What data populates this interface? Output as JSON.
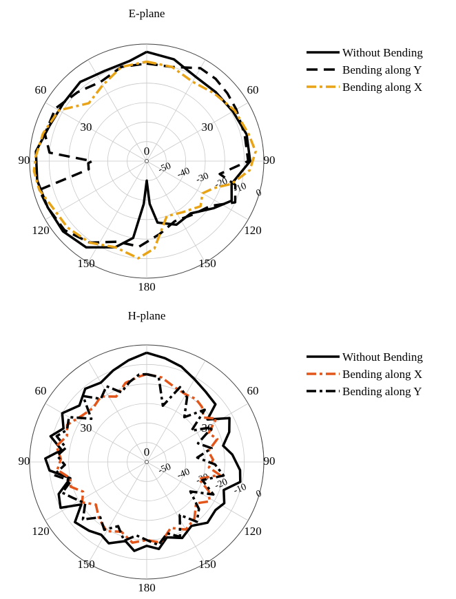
{
  "chart_data": [
    {
      "type": "polar-line",
      "title": "E-plane",
      "radial_range": [
        -60,
        0
      ],
      "radial_ticks": [
        -50,
        -40,
        -30,
        -20,
        -10,
        0
      ],
      "radial_tick_labels": [
        "-50",
        "-40",
        "-30",
        "-20",
        "-10",
        "0"
      ],
      "angle_labels": [
        "0",
        "30",
        "60",
        "90",
        "120",
        "150",
        "180",
        "150",
        "120",
        "90",
        "60",
        "30"
      ],
      "grid": true,
      "legend_position": "right",
      "series": [
        {
          "name": "Without Bending",
          "color": "#000000",
          "style": "solid",
          "points": [
            [
              0,
              -4
            ],
            [
              15,
              -6
            ],
            [
              30,
              -10
            ],
            [
              45,
              -10
            ],
            [
              60,
              -9
            ],
            [
              75,
              -7
            ],
            [
              90,
              -7
            ],
            [
              105,
              -15
            ],
            [
              115,
              -12
            ],
            [
              125,
              -18
            ],
            [
              140,
              -25
            ],
            [
              155,
              -24
            ],
            [
              170,
              -28
            ],
            [
              176,
              -38
            ],
            [
              180,
              -50
            ],
            [
              184,
              -38
            ],
            [
              190,
              -20
            ],
            [
              200,
              -13
            ],
            [
              215,
              -6
            ],
            [
              230,
              -4
            ],
            [
              245,
              -4
            ],
            [
              260,
              -3
            ],
            [
              275,
              -3
            ],
            [
              290,
              -7
            ],
            [
              305,
              -8
            ],
            [
              320,
              -7
            ],
            [
              335,
              -9
            ],
            [
              350,
              -8
            ],
            [
              360,
              -4
            ]
          ]
        },
        {
          "name": "Bending along Y",
          "color": "#000000",
          "style": "dash",
          "points": [
            [
              0,
              -10
            ],
            [
              15,
              -10
            ],
            [
              30,
              -5
            ],
            [
              40,
              -5
            ],
            [
              50,
              -6
            ],
            [
              60,
              -7
            ],
            [
              75,
              -8
            ],
            [
              90,
              -8
            ],
            [
              100,
              -22
            ],
            [
              105,
              -13
            ],
            [
              115,
              -10
            ],
            [
              125,
              -20
            ],
            [
              140,
              -24
            ],
            [
              155,
              -26
            ],
            [
              170,
              -22
            ],
            [
              185,
              -16
            ],
            [
              200,
              -16
            ],
            [
              215,
              -9
            ],
            [
              230,
              -5
            ],
            [
              245,
              -4
            ],
            [
              255,
              -3
            ],
            [
              262,
              -30
            ],
            [
              268,
              -30
            ],
            [
              270,
              -32
            ],
            [
              275,
              -10
            ],
            [
              285,
              -6
            ],
            [
              300,
              -6
            ],
            [
              315,
              -10
            ],
            [
              330,
              -13
            ],
            [
              345,
              -10
            ],
            [
              360,
              -10
            ]
          ]
        },
        {
          "name": "Bending along X",
          "color": "#E8A317",
          "style": "dashdot",
          "points": [
            [
              0,
              -9
            ],
            [
              15,
              -10
            ],
            [
              30,
              -13
            ],
            [
              45,
              -11
            ],
            [
              60,
              -8
            ],
            [
              75,
              -6
            ],
            [
              85,
              -4
            ],
            [
              95,
              -7
            ],
            [
              105,
              -15
            ],
            [
              112,
              -23
            ],
            [
              120,
              -27
            ],
            [
              130,
              -24
            ],
            [
              145,
              -28
            ],
            [
              160,
              -30
            ],
            [
              175,
              -15
            ],
            [
              185,
              -10
            ],
            [
              200,
              -13
            ],
            [
              215,
              -9
            ],
            [
              230,
              -7
            ],
            [
              245,
              -6
            ],
            [
              255,
              -3
            ],
            [
              265,
              -2
            ],
            [
              272,
              -3
            ],
            [
              285,
              -5
            ],
            [
              300,
              -8
            ],
            [
              315,
              -18
            ],
            [
              330,
              -15
            ],
            [
              345,
              -10
            ],
            [
              360,
              -9
            ]
          ]
        }
      ]
    },
    {
      "type": "polar-line",
      "title": "H-plane",
      "radial_range": [
        -60,
        0
      ],
      "radial_ticks": [
        -50,
        -40,
        -30,
        -20,
        -10,
        0
      ],
      "radial_tick_labels": [
        "-50",
        "-40",
        "-30",
        "-20",
        "-10",
        "0"
      ],
      "angle_labels": [
        "0",
        "30",
        "60",
        "90",
        "120",
        "150",
        "180",
        "150",
        "120",
        "90",
        "60",
        "30"
      ],
      "grid": true,
      "legend_position": "right",
      "series": [
        {
          "name": "Without Bending",
          "color": "#000000",
          "style": "solid",
          "points": [
            [
              0,
              -4
            ],
            [
              10,
              -6
            ],
            [
              20,
              -8
            ],
            [
              30,
              -11
            ],
            [
              40,
              -13
            ],
            [
              50,
              -14
            ],
            [
              55,
              -22
            ],
            [
              62,
              -12
            ],
            [
              70,
              -15
            ],
            [
              78,
              -20
            ],
            [
              85,
              -16
            ],
            [
              95,
              -12
            ],
            [
              102,
              -11
            ],
            [
              110,
              -18
            ],
            [
              118,
              -15
            ],
            [
              125,
              -17
            ],
            [
              135,
              -16
            ],
            [
              145,
              -20
            ],
            [
              155,
              -17
            ],
            [
              165,
              -20
            ],
            [
              172,
              -15
            ],
            [
              180,
              -17
            ],
            [
              188,
              -14
            ],
            [
              195,
              -18
            ],
            [
              205,
              -14
            ],
            [
              212,
              -16
            ],
            [
              220,
              -14
            ],
            [
              230,
              -12
            ],
            [
              237,
              -20
            ],
            [
              242,
              -10
            ],
            [
              250,
              -12
            ],
            [
              258,
              -20
            ],
            [
              265,
              -10
            ],
            [
              272,
              -8
            ],
            [
              278,
              -16
            ],
            [
              285,
              -9
            ],
            [
              292,
              -14
            ],
            [
              300,
              -10
            ],
            [
              310,
              -15
            ],
            [
              320,
              -11
            ],
            [
              330,
              -13
            ],
            [
              340,
              -10
            ],
            [
              350,
              -7
            ],
            [
              360,
              -4
            ]
          ]
        },
        {
          "name": "Bending along X",
          "color": "#E2561B",
          "style": "dashdot",
          "points": [
            [
              0,
              -15
            ],
            [
              10,
              -16
            ],
            [
              20,
              -19
            ],
            [
              30,
              -20
            ],
            [
              38,
              -19
            ],
            [
              45,
              -20
            ],
            [
              52,
              -23
            ],
            [
              58,
              -18
            ],
            [
              65,
              -25
            ],
            [
              72,
              -22
            ],
            [
              80,
              -28
            ],
            [
              88,
              -26
            ],
            [
              95,
              -28
            ],
            [
              100,
              -22
            ],
            [
              108,
              -32
            ],
            [
              115,
              -25
            ],
            [
              122,
              -22
            ],
            [
              130,
              -27
            ],
            [
              140,
              -22
            ],
            [
              150,
              -20
            ],
            [
              160,
              -24
            ],
            [
              170,
              -18
            ],
            [
              180,
              -20
            ],
            [
              190,
              -18
            ],
            [
              200,
              -22
            ],
            [
              210,
              -19
            ],
            [
              220,
              -22
            ],
            [
              230,
              -26
            ],
            [
              238,
              -21
            ],
            [
              245,
              -24
            ],
            [
              252,
              -19
            ],
            [
              258,
              -20
            ],
            [
              265,
              -14
            ],
            [
              272,
              -16
            ],
            [
              280,
              -13
            ],
            [
              288,
              -17
            ],
            [
              295,
              -15
            ],
            [
              305,
              -19
            ],
            [
              315,
              -21
            ],
            [
              325,
              -19
            ],
            [
              335,
              -23
            ],
            [
              345,
              -18
            ],
            [
              355,
              -16
            ],
            [
              360,
              -15
            ]
          ]
        },
        {
          "name": "Bending along Y",
          "color": "#000000",
          "style": "dashdot",
          "points": [
            [
              0,
              -15
            ],
            [
              8,
              -16
            ],
            [
              16,
              -30
            ],
            [
              24,
              -18
            ],
            [
              32,
              -21
            ],
            [
              40,
              -30
            ],
            [
              48,
              -20
            ],
            [
              55,
              -32
            ],
            [
              62,
              -22
            ],
            [
              70,
              -32
            ],
            [
              78,
              -26
            ],
            [
              85,
              -34
            ],
            [
              92,
              -25
            ],
            [
              100,
              -20
            ],
            [
              108,
              -30
            ],
            [
              116,
              -22
            ],
            [
              124,
              -33
            ],
            [
              132,
              -24
            ],
            [
              140,
              -20
            ],
            [
              148,
              -28
            ],
            [
              156,
              -18
            ],
            [
              164,
              -22
            ],
            [
              172,
              -17
            ],
            [
              180,
              -20
            ],
            [
              188,
              -22
            ],
            [
              196,
              -18
            ],
            [
              204,
              -24
            ],
            [
              212,
              -19
            ],
            [
              220,
              -23
            ],
            [
              228,
              -16
            ],
            [
              236,
              -22
            ],
            [
              244,
              -18
            ],
            [
              250,
              -14
            ],
            [
              256,
              -20
            ],
            [
              262,
              -12
            ],
            [
              268,
              -18
            ],
            [
              274,
              -14
            ],
            [
              280,
              -18
            ],
            [
              286,
              -12
            ],
            [
              292,
              -16
            ],
            [
              300,
              -14
            ],
            [
              308,
              -24
            ],
            [
              316,
              -13
            ],
            [
              324,
              -20
            ],
            [
              332,
              -16
            ],
            [
              340,
              -22
            ],
            [
              348,
              -18
            ],
            [
              355,
              -15
            ],
            [
              360,
              -15
            ]
          ]
        }
      ]
    }
  ]
}
